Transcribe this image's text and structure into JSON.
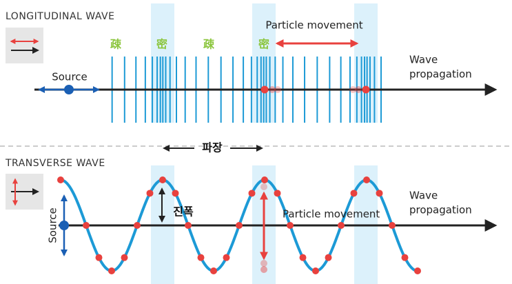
{
  "longitudinal": {
    "title": "LONGITUDINAL WAVE",
    "labels": [
      "疎",
      "密",
      "疎",
      "密"
    ],
    "particle_movement": "Particle movement",
    "source": "Source",
    "propagation": [
      "Wave",
      "propagation"
    ]
  },
  "wavelength": "파장",
  "transverse": {
    "title": "TRANSVERSE WAVE",
    "amplitude": "진폭",
    "particle_movement": "Particle movement",
    "source": "Source",
    "propagation": [
      "Wave",
      "propagation"
    ]
  }
}
